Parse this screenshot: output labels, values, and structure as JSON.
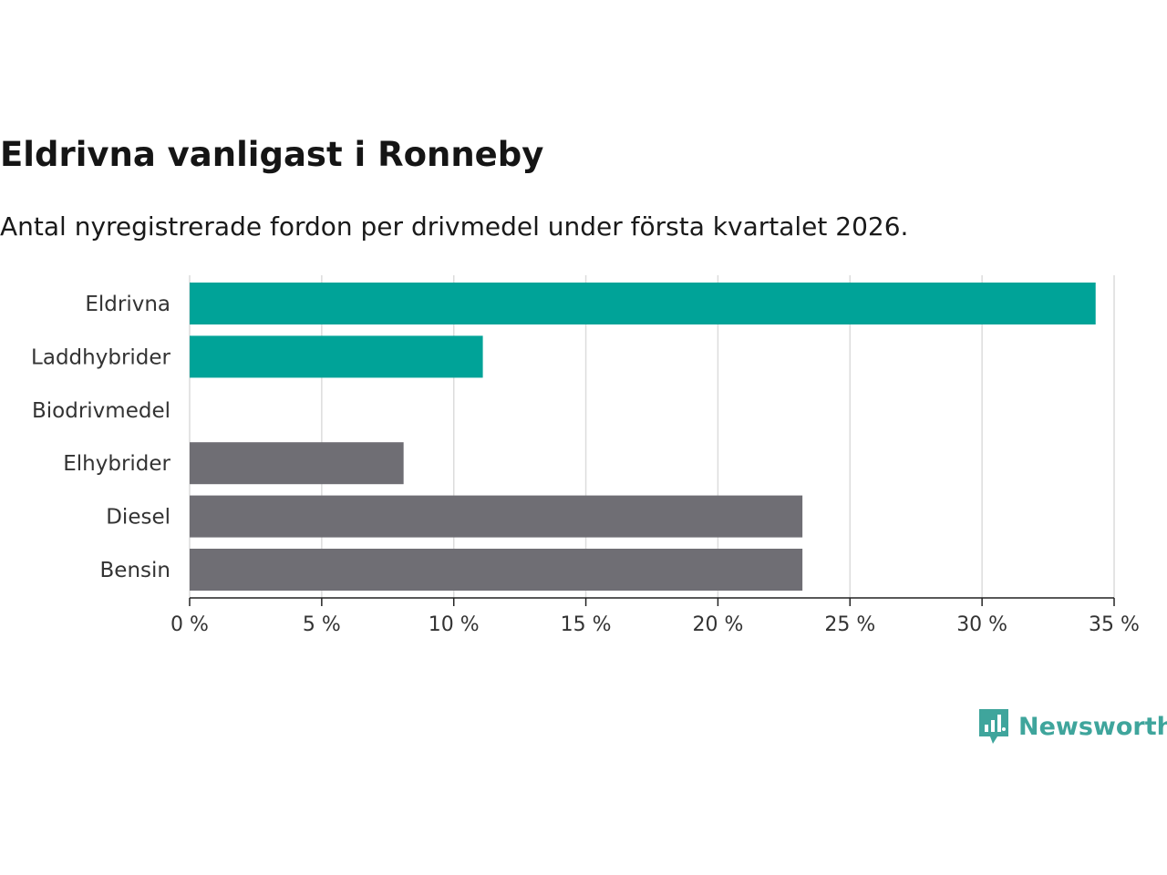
{
  "title": "Eldrivna vanligast i Ronneby",
  "subtitle": "Antal nyregistrerade fordon per drivmedel under första kvartalet 2026.",
  "brand": {
    "name": "Newsworthy",
    "icon": "newsworthy-logo-icon",
    "color": "#3fa59c"
  },
  "chart_data": {
    "type": "bar",
    "orientation": "horizontal",
    "categories": [
      "Eldrivna",
      "Laddhybrider",
      "Biodrivmedel",
      "Elhybrider",
      "Diesel",
      "Bensin"
    ],
    "values": [
      34.3,
      11.1,
      0,
      8.1,
      23.2,
      23.2
    ],
    "colors": [
      "#00a398",
      "#00a398",
      "#00a398",
      "#6f6e74",
      "#6f6e74",
      "#6f6e74"
    ],
    "unit": "%",
    "xlim": [
      0,
      35
    ],
    "xticks": [
      0,
      5,
      10,
      15,
      20,
      25,
      30,
      35
    ],
    "xtick_labels": [
      "0 %",
      "5 %",
      "10 %",
      "15 %",
      "20 %",
      "25 %",
      "30 %",
      "35 %"
    ],
    "grid": true,
    "xlabel": "",
    "ylabel": ""
  }
}
